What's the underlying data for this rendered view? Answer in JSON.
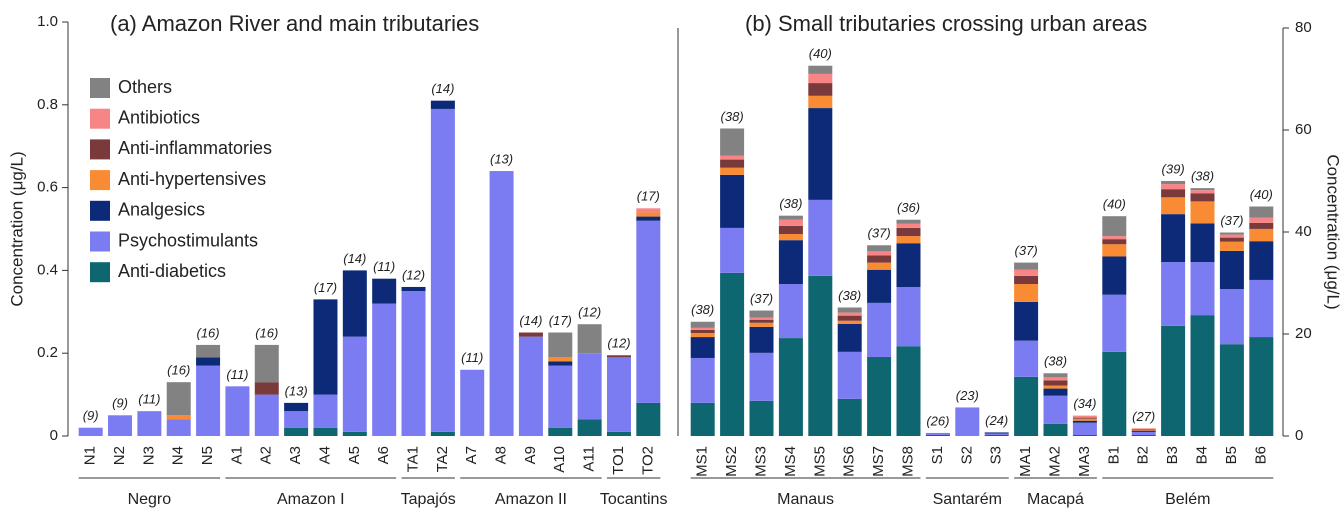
{
  "chart_data": [
    {
      "type": "bar",
      "stacked": true,
      "legend": true,
      "yaxis": "left",
      "title": "(a) Amazon River and main tributaries",
      "y_label": "Concentration (μg/L)",
      "ylim": [
        0,
        1
      ],
      "yticks": [
        0,
        0.2,
        0.4,
        0.6,
        0.8,
        {
          "value": 1,
          "label": "1.0"
        }
      ],
      "categories": [
        "N1",
        "N2",
        "N3",
        "N4",
        "N5",
        "A1",
        "A2",
        "A3",
        "A4",
        "A5",
        "A6",
        "TA1",
        "TA2",
        "A7",
        "A8",
        "A9",
        "A10",
        "A11",
        "TO1",
        "TO2"
      ],
      "category_groups": [
        "Negro",
        "Negro",
        "Negro",
        "Negro",
        "Negro",
        "Amazon I",
        "Amazon I",
        "Amazon I",
        "Amazon I",
        "Amazon I",
        "Amazon I",
        "Tapajós",
        "Tapajós",
        "Amazon II",
        "Amazon II",
        "Amazon II",
        "Amazon II",
        "Amazon II",
        "Tocantins",
        "Tocantins"
      ],
      "annotations": [
        "(9)",
        "(9)",
        "(11)",
        "(16)",
        "(16)",
        "(11)",
        "(16)",
        "(13)",
        "(17)",
        "(14)",
        "(11)",
        "(12)",
        "(14)",
        "(11)",
        "(13)",
        "(14)",
        "(17)",
        "(12)",
        "(12)",
        "(17)"
      ],
      "series": [
        {
          "name": "Anti-diabetics",
          "color": "#0d6670",
          "values": [
            0,
            0,
            0,
            0,
            0,
            0,
            0,
            0.02,
            0.02,
            0.01,
            0,
            0,
            0.01,
            0,
            0,
            0,
            0.02,
            0.04,
            0.01,
            0.08
          ]
        },
        {
          "name": "Psychostimulants",
          "color": "#7b7cf2",
          "values": [
            0.02,
            0.05,
            0.06,
            0.04,
            0.17,
            0.12,
            0.1,
            0.04,
            0.08,
            0.23,
            0.32,
            0.35,
            0.78,
            0.16,
            0.64,
            0.24,
            0.15,
            0.16,
            0.18,
            0.44
          ]
        },
        {
          "name": "Analgesics",
          "color": "#0c2a78",
          "values": [
            0,
            0,
            0,
            0,
            0.02,
            0,
            0,
            0.02,
            0.23,
            0.16,
            0.06,
            0.01,
            0.02,
            0,
            0,
            0,
            0.01,
            0,
            0,
            0.01
          ]
        },
        {
          "name": "Anti-hypertensives",
          "color": "#f98b35",
          "values": [
            0,
            0,
            0,
            0.01,
            0,
            0,
            0,
            0,
            0,
            0,
            0,
            0,
            0,
            0,
            0,
            0,
            0.01,
            0,
            0,
            0.01
          ]
        },
        {
          "name": "Anti-inflammatories",
          "color": "#7a3a3c",
          "values": [
            0,
            0,
            0,
            0,
            0,
            0,
            0.03,
            0,
            0,
            0,
            0,
            0,
            0,
            0,
            0,
            0.01,
            0,
            0,
            0.005,
            0
          ]
        },
        {
          "name": "Antibiotics",
          "color": "#f88585",
          "values": [
            0,
            0,
            0,
            0,
            0,
            0,
            0,
            0,
            0,
            0,
            0,
            0,
            0,
            0,
            0,
            0,
            0,
            0,
            0,
            0.01
          ]
        },
        {
          "name": "Others",
          "color": "#828282",
          "values": [
            0,
            0,
            0,
            0.08,
            0.03,
            0,
            0.09,
            0,
            0,
            0,
            0,
            0,
            0,
            0,
            0,
            0,
            0.06,
            0.07,
            0,
            0
          ]
        }
      ]
    },
    {
      "type": "bar",
      "stacked": true,
      "legend": false,
      "yaxis": "right",
      "title": "(b) Small tributaries crossing urban areas",
      "y_label": "Concentration (μg/L)",
      "ylim": [
        0,
        80
      ],
      "yticks": [
        0,
        20,
        40,
        60,
        80
      ],
      "categories": [
        "MS1",
        "MS2",
        "MS3",
        "MS4",
        "MS5",
        "MS6",
        "MS7",
        "MS8",
        "S1",
        "S2",
        "S3",
        "MA1",
        "MA2",
        "MA3",
        "B1",
        "B2",
        "B3",
        "B4",
        "B5",
        "B6"
      ],
      "category_groups": [
        "Manaus",
        "Manaus",
        "Manaus",
        "Manaus",
        "Manaus",
        "Manaus",
        "Manaus",
        "Manaus",
        "Santarém",
        "Santarém",
        "Santarém",
        "Macapá",
        "Macapá",
        "Macapá",
        "Belém",
        "Belém",
        "Belém",
        "Belém",
        "Belém",
        "Belém"
      ],
      "annotations": [
        "(38)",
        "(38)",
        "(37)",
        "(38)",
        "(40)",
        "(38)",
        "(37)",
        "(36)",
        "(26)",
        "(23)",
        "(24)",
        "(37)",
        "(38)",
        "(34)",
        "(40)",
        "(27)",
        "(39)",
        "(38)",
        "(37)",
        "(40)"
      ],
      "series": [
        {
          "name": "Anti-diabetics",
          "color": "#0d6670",
          "values": [
            6.5,
            32,
            6.9,
            19.2,
            31.4,
            7.3,
            15.5,
            17.6,
            0.2,
            0,
            0.2,
            11.6,
            2.4,
            0.2,
            16.5,
            0.2,
            21.6,
            23.7,
            18,
            19.4
          ]
        },
        {
          "name": "Psychostimulants",
          "color": "#7b7cf2",
          "values": [
            8.8,
            8.8,
            9.4,
            10.6,
            14.9,
            9.2,
            10.6,
            11.6,
            0.4,
            5.6,
            0.3,
            7.1,
            5.5,
            2.4,
            11.2,
            0.6,
            12.5,
            10.4,
            10.8,
            11.2
          ]
        },
        {
          "name": "Analgesics",
          "color": "#0c2a78",
          "values": [
            4.1,
            10.4,
            5.1,
            8.6,
            18,
            5.5,
            6.5,
            8.6,
            0,
            0,
            0.2,
            7.6,
            1.4,
            0.4,
            7.5,
            0.2,
            9.4,
            7.6,
            7.5,
            7.6
          ]
        },
        {
          "name": "Anti-hypertensives",
          "color": "#f98b35",
          "values": [
            0.8,
            1.4,
            0.8,
            1.2,
            2.4,
            0.6,
            1.4,
            1.4,
            0,
            0,
            0,
            3.5,
            0.6,
            0.4,
            2.4,
            0.1,
            3.3,
            4.3,
            1.8,
            2.4
          ]
        },
        {
          "name": "Anti-inflammatories",
          "color": "#7a3a3c",
          "values": [
            0.6,
            1.6,
            0.6,
            1.6,
            2.5,
            1,
            1.4,
            1.6,
            0,
            0,
            0,
            1.6,
            1,
            0.2,
            1,
            0.2,
            1.6,
            1.6,
            0.8,
            1.2
          ]
        },
        {
          "name": "Antibiotics",
          "color": "#f88585",
          "values": [
            0.4,
            0.8,
            0.4,
            1.2,
            1.8,
            0.6,
            0.8,
            0.8,
            0,
            0,
            0,
            1.2,
            0.6,
            0.4,
            0.6,
            0.2,
            1,
            0.6,
            0.6,
            1
          ]
        },
        {
          "name": "Others",
          "color": "#828282",
          "values": [
            1.2,
            5.3,
            1.4,
            0.8,
            1.6,
            1,
            1.2,
            0.8,
            0,
            0,
            0,
            1.4,
            0.8,
            0,
            3.9,
            0,
            0.6,
            0.4,
            0.4,
            2.2
          ]
        }
      ]
    }
  ]
}
